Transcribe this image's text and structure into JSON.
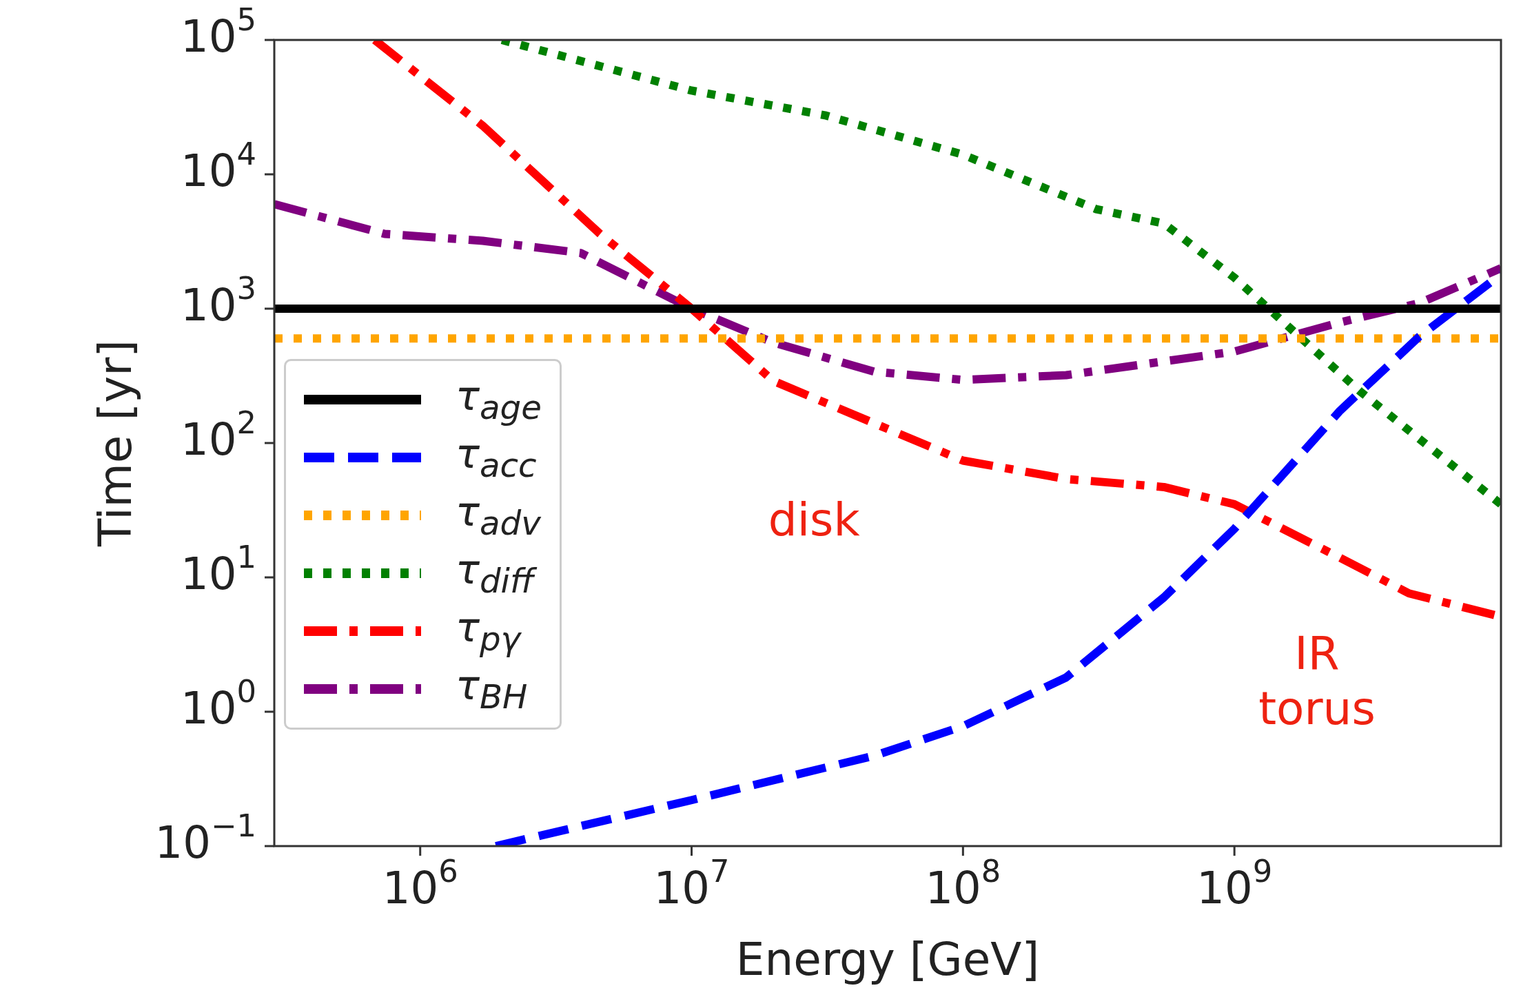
{
  "chart_data": {
    "type": "line",
    "xlabel": "Energy [GeV]",
    "ylabel": "Time [yr]",
    "log": "xy",
    "grid": false,
    "legend": "center left",
    "xlim": [
      290000,
      9600000000
    ],
    "xticks": [
      {
        "value": 1000000,
        "label": "10$^{6}$"
      },
      {
        "value": 10000000,
        "label": "10$^{7}$"
      },
      {
        "value": 100000000,
        "label": "10$^{8}$"
      },
      {
        "value": 1000000000,
        "label": "10$^{9}$"
      }
    ],
    "ylim": [
      0.1,
      100000
    ],
    "yticks": [
      {
        "value": 0.1,
        "label": "10$^{−1}$"
      },
      {
        "value": 1,
        "label": "10$^{0}$"
      },
      {
        "value": 10,
        "label": "10$^{1}$"
      },
      {
        "value": 100,
        "label": "10$^{2}$"
      },
      {
        "value": 1000,
        "label": "10$^{3}$"
      },
      {
        "value": 10000,
        "label": "10$^{4}$"
      },
      {
        "value": 100000,
        "label": "10$^{5}$"
      }
    ],
    "series": [
      {
        "name": "τ$_{age}$",
        "color": "#000000",
        "line_style": "solid",
        "x": [
          290000,
          9600000000
        ],
        "values": [
          1000,
          1000
        ]
      },
      {
        "name": "τ$_{acc}$",
        "color": "#0000ff",
        "line_style": "dashed",
        "x": [
          1900000,
          10000000,
          47000000,
          100000000,
          240000000,
          550000000,
          1000000000,
          2450000000,
          4800000000,
          9600000000
        ],
        "values": [
          0.1,
          0.22,
          0.47,
          0.78,
          1.8,
          7.1,
          23,
          174,
          620,
          1800
        ]
      },
      {
        "name": "τ$_{adv}$",
        "color": "#ffa500",
        "line_style": "dotted",
        "x": [
          290000,
          9600000000
        ],
        "values": [
          600,
          600
        ]
      },
      {
        "name": "τ$_{diff}$",
        "color": "#008000",
        "line_style": "dotted",
        "x": [
          2000000,
          10000000,
          31000000,
          100000000,
          310000000,
          550000000,
          1000000000,
          2900000000,
          9600000000
        ],
        "values": [
          100000,
          42000,
          27500,
          14000,
          5500,
          4300,
          1700,
          243,
          35
        ]
      },
      {
        "name": "τ$_{pγ}$",
        "color": "#ff0000",
        "line_style": "dashdot",
        "x": [
          680000,
          1700000,
          4600000,
          10000000,
          20000000,
          100000000,
          240000000,
          550000000,
          1000000000,
          2450000000,
          4400000000,
          9600000000
        ],
        "values": [
          100000,
          23000,
          3600,
          1000,
          290,
          74,
          54,
          47,
          35,
          14,
          7.6,
          5.1
        ]
      },
      {
        "name": "τ$_{BH}$",
        "color": "#800080",
        "line_style": "dashdot",
        "x": [
          290000,
          740000,
          1700000,
          3900000,
          10000000,
          20000000,
          47000000,
          100000000,
          240000000,
          1000000000,
          2450000000,
          4800000000,
          9600000000
        ],
        "values": [
          6000,
          3600,
          3200,
          2600,
          1000,
          560,
          340,
          295,
          320,
          480,
          790,
          1100,
          2000
        ]
      }
    ],
    "annotations": [
      "disk",
      "IR\ntorus"
    ]
  }
}
